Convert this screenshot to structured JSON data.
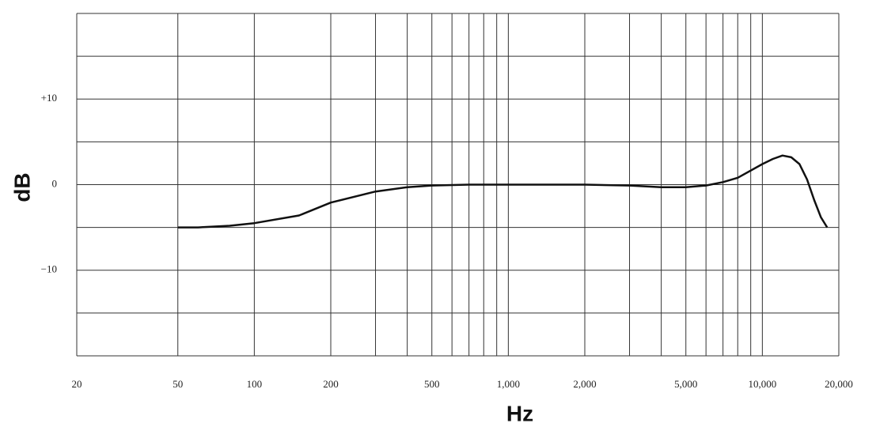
{
  "chart_data": {
    "type": "line",
    "x_label": "Hz",
    "y_label": "dB",
    "xscale": "log",
    "xlim": [
      20,
      20000
    ],
    "ylim": [
      -20,
      20
    ],
    "xticks": [
      20,
      50,
      100,
      200,
      500,
      {
        "value": 1000,
        "label": "1,000"
      },
      {
        "value": 2000,
        "label": "2,000"
      },
      {
        "value": 5000,
        "label": "5,000"
      },
      {
        "value": 10000,
        "label": "10,000"
      },
      {
        "value": 20000,
        "label": "20,000"
      }
    ],
    "yticks": [
      {
        "value": 10,
        "label": "+10"
      },
      0,
      {
        "value": -10,
        "label": "−10"
      }
    ],
    "xgrid": [
      50,
      100,
      200,
      300,
      400,
      500,
      600,
      700,
      800,
      900,
      1000,
      2000,
      3000,
      4000,
      5000,
      6000,
      7000,
      8000,
      9000,
      10000,
      20000
    ],
    "ygrid": [
      -20,
      -15,
      -10,
      -5,
      0,
      5,
      10,
      15,
      20
    ],
    "series": [
      {
        "color": "#111111",
        "x": [
          50,
          60,
          80,
          100,
          150,
          200,
          300,
          400,
          500,
          700,
          1000,
          2000,
          3000,
          4000,
          5000,
          6000,
          7000,
          8000,
          10000,
          11000,
          12000,
          13000,
          14000,
          15000,
          16000,
          17000,
          18000
        ],
        "values": [
          -5,
          -5,
          -4.8,
          -4.5,
          -3.6,
          -2.1,
          -0.8,
          -0.3,
          -0.1,
          0,
          0,
          0,
          -0.1,
          -0.3,
          -0.3,
          -0.1,
          0.3,
          0.8,
          2.4,
          3.0,
          3.4,
          3.2,
          2.4,
          0.6,
          -1.8,
          -3.8,
          -5
        ]
      }
    ]
  }
}
